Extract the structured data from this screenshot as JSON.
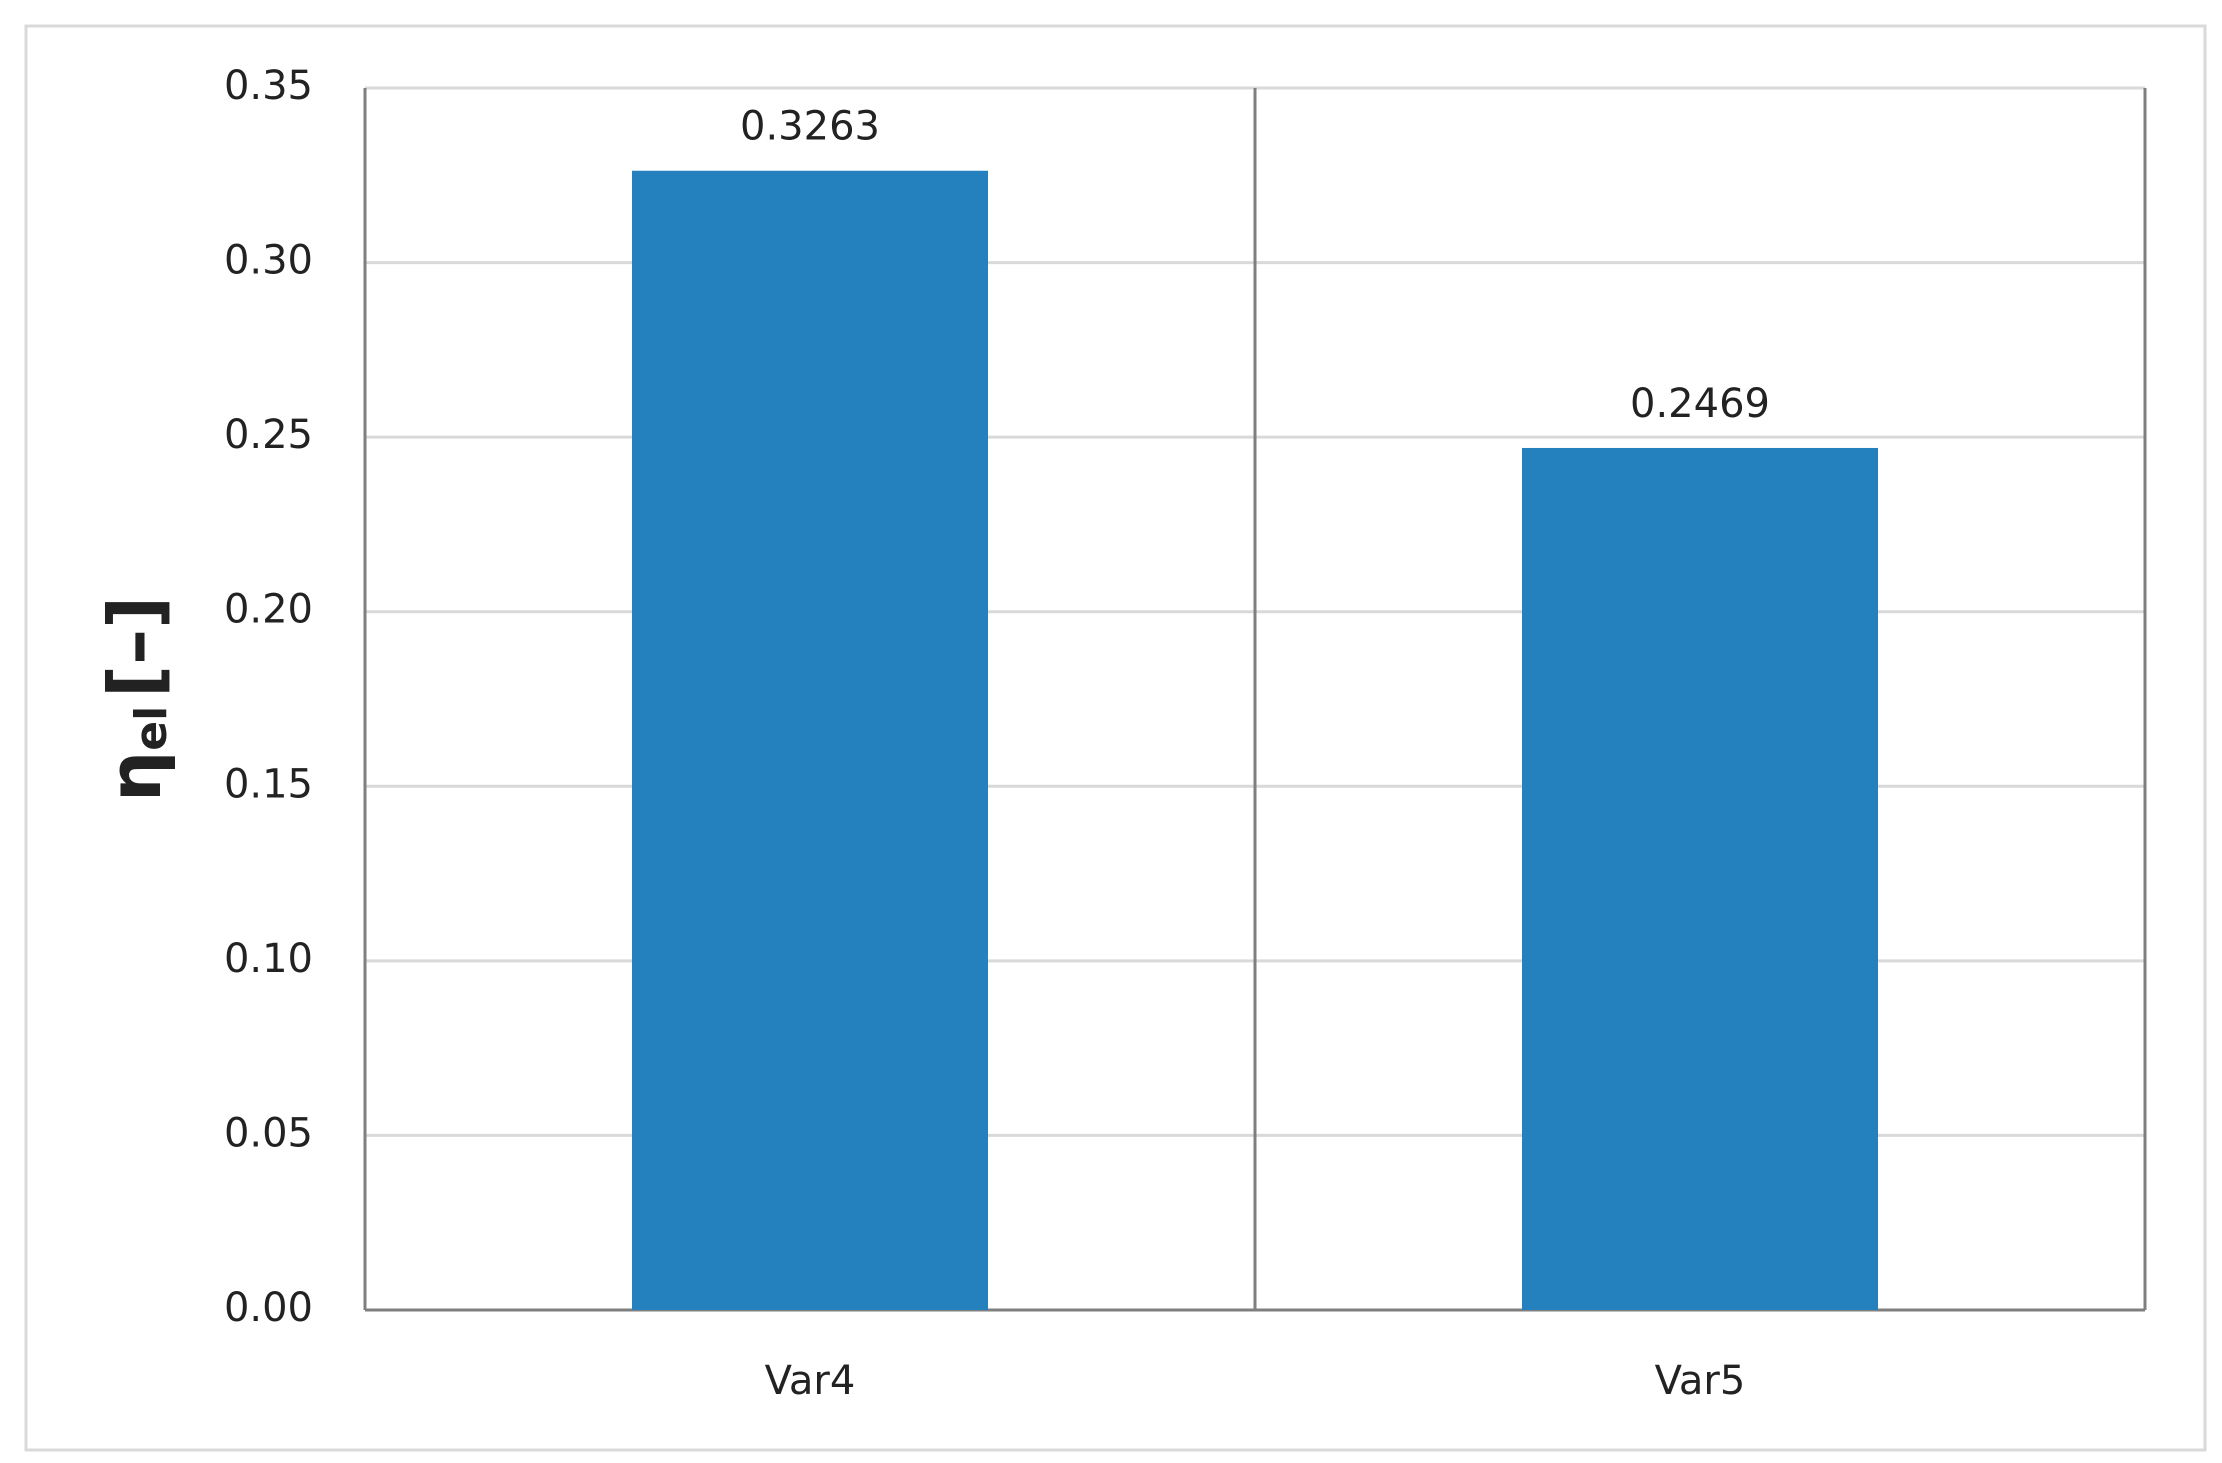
{
  "chart_data": {
    "type": "bar",
    "ylabel": {
      "symbol": "η",
      "subscript": "el",
      "unit": "[–]"
    },
    "categories": [
      "Var4",
      "Var5"
    ],
    "values": [
      0.3263,
      0.2469
    ],
    "color": "#2581bd",
    "ylim": [
      0,
      0.35
    ],
    "yticks": [
      {
        "value": 0,
        "label": "0.00"
      },
      {
        "value": 0.05,
        "label": "0.05"
      },
      {
        "value": 0.1,
        "label": "0.10"
      },
      {
        "value": 0.15,
        "label": "0.15"
      },
      {
        "value": 0.2,
        "label": "0.20"
      },
      {
        "value": 0.25,
        "label": "0.25"
      },
      {
        "value": 0.3,
        "label": "0.30"
      },
      {
        "value": 0.35,
        "label": "0.35"
      }
    ],
    "grid": true
  }
}
